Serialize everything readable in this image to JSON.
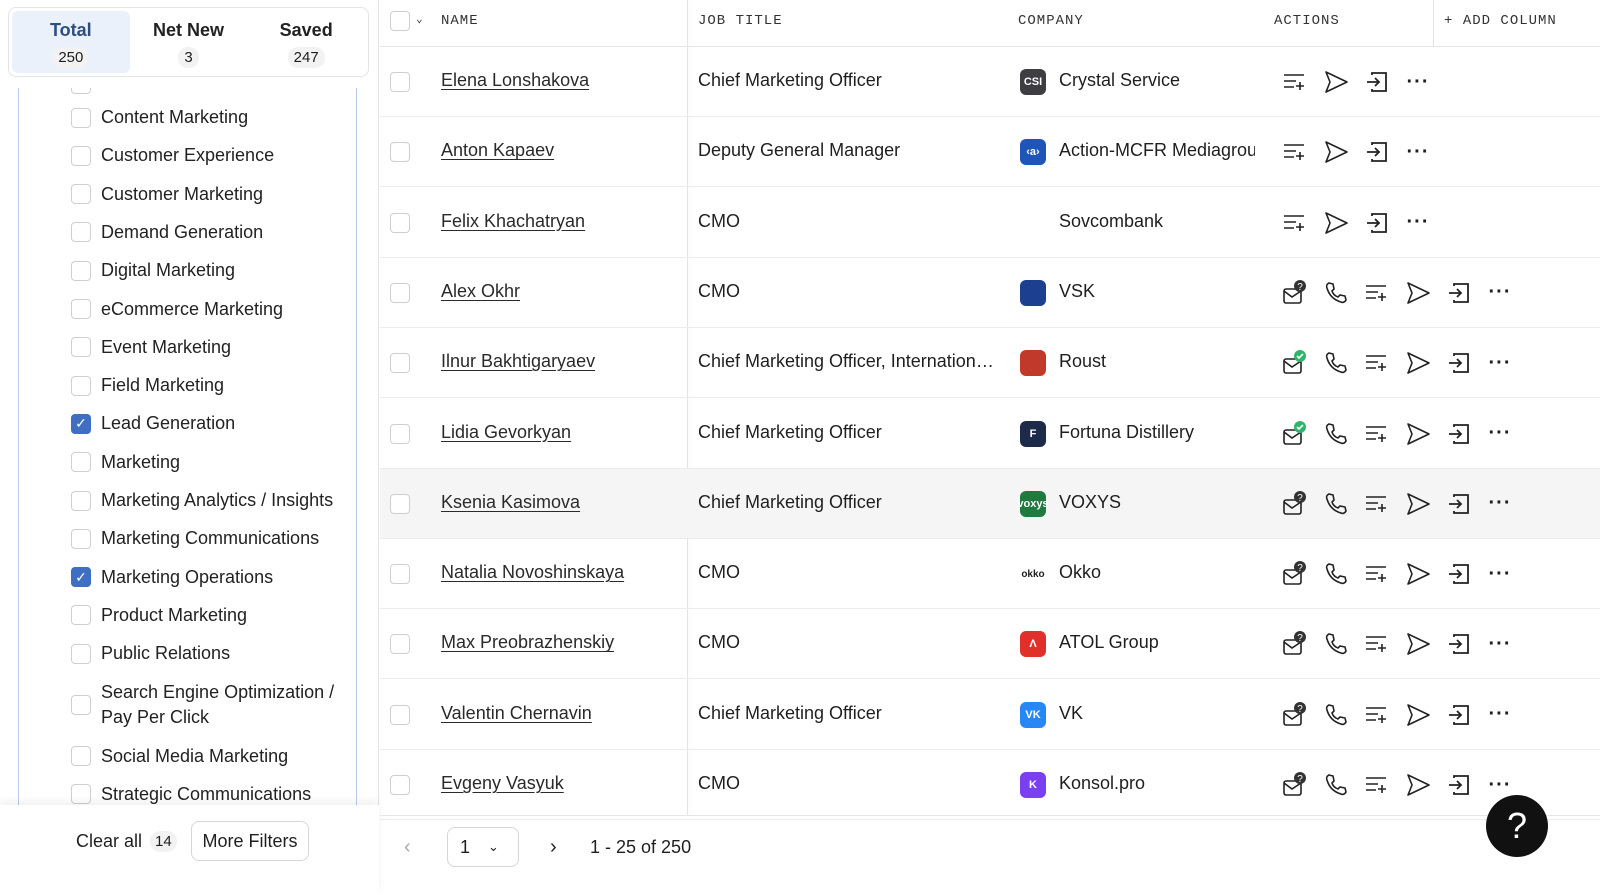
{
  "tabs": [
    {
      "label": "Total",
      "count": "250",
      "active": true
    },
    {
      "label": "Net New",
      "count": "3"
    },
    {
      "label": "Saved",
      "count": "247"
    }
  ],
  "filters": [
    {
      "label": "Content Marketing",
      "checked": false
    },
    {
      "label": "Customer Experience",
      "checked": false
    },
    {
      "label": "Customer Marketing",
      "checked": false
    },
    {
      "label": "Demand Generation",
      "checked": false
    },
    {
      "label": "Digital Marketing",
      "checked": false
    },
    {
      "label": "eCommerce Marketing",
      "checked": false
    },
    {
      "label": "Event Marketing",
      "checked": false
    },
    {
      "label": "Field Marketing",
      "checked": false
    },
    {
      "label": "Lead Generation",
      "checked": true
    },
    {
      "label": "Marketing",
      "checked": false
    },
    {
      "label": "Marketing Analytics / Insights",
      "checked": false
    },
    {
      "label": "Marketing Communications",
      "checked": false
    },
    {
      "label": "Marketing Operations",
      "checked": true
    },
    {
      "label": "Product Marketing",
      "checked": false
    },
    {
      "label": "Public Relations",
      "checked": false
    },
    {
      "label": "Search Engine Optimization / Pay Per Click",
      "checked": false
    },
    {
      "label": "Social Media Marketing",
      "checked": false
    },
    {
      "label": "Strategic Communications",
      "checked": false
    }
  ],
  "footer": {
    "clear_all": "Clear all",
    "clear_count": "14",
    "more_filters": "More Filters"
  },
  "table": {
    "headers": {
      "name": "NAME",
      "job_title": "JOB TITLE",
      "company": "COMPANY",
      "actions": "ACTIONS",
      "add_column": "ADD COLUMN"
    },
    "rows": [
      {
        "name": "Elena Lonshakova",
        "job": "Chief Marketing Officer",
        "company": "Crystal Service",
        "logo": "CSI",
        "logo_color": "#3d3d42",
        "email": "none"
      },
      {
        "name": "Anton Kapaev",
        "job": "Deputy General Manager",
        "company": "Action-MCFR Mediagroup",
        "logo": "‹a›",
        "logo_color": "#1f55b8",
        "email": "none"
      },
      {
        "name": "Felix Khachatryan",
        "job": "CMO",
        "company": "Sovcombank",
        "logo": "",
        "logo_color": "#ffffff",
        "email": "none"
      },
      {
        "name": "Alex Okhr",
        "job": "CMO",
        "company": "VSK",
        "logo": "",
        "logo_color": "#1c3f8f",
        "email": "unknown"
      },
      {
        "name": "Ilnur Bakhtigaryaev",
        "job": "Chief Marketing Officer, International Business",
        "company": "Roust",
        "logo": "",
        "logo_color": "#c0392b",
        "email": "verified"
      },
      {
        "name": "Lidia Gevorkyan",
        "job": "Chief Marketing Officer",
        "company": "Fortuna Distillery",
        "logo": "F",
        "logo_color": "#1e2a4a",
        "email": "verified"
      },
      {
        "name": "Ksenia Kasimova",
        "job": "Chief Marketing Officer",
        "company": "VOXYS",
        "logo": "voxys",
        "logo_color": "#1f7a3e",
        "email": "unknown",
        "highlight": true
      },
      {
        "name": "Natalia Novoshinskaya",
        "job": "CMO",
        "company": "Okko",
        "logo": "okko",
        "logo_color": "#ffffff",
        "email": "unknown"
      },
      {
        "name": "Max Preobrazhenskiy",
        "job": "CMO",
        "company": "ATOL Group",
        "logo": "Λ",
        "logo_color": "#e0302a",
        "email": "unknown"
      },
      {
        "name": "Valentin Chernavin",
        "job": "Chief Marketing Officer",
        "company": "VK",
        "logo": "VK",
        "logo_color": "#2787f5",
        "email": "unknown"
      },
      {
        "name": "Evgeny Vasyuk",
        "job": "CMO",
        "company": "Konsol.pro",
        "logo": "K",
        "logo_color": "#7b3ff2",
        "email": "unknown"
      }
    ]
  },
  "pagination": {
    "page": "1",
    "range": "1 - 25 of 250"
  },
  "help": "?"
}
